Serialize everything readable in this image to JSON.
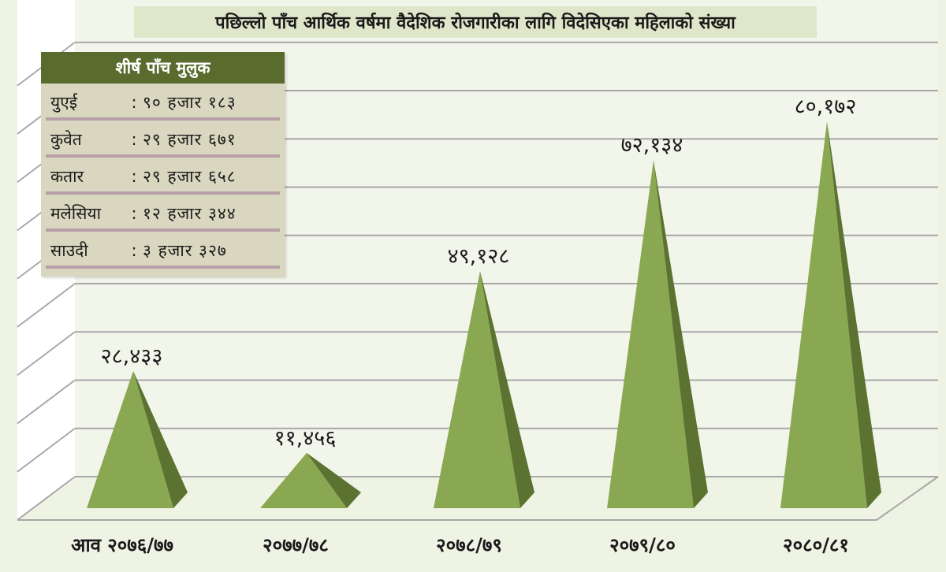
{
  "title": "पछिल्लो पाँच आर्थिक वर्षमा वैदेशिक रोजगारीका लागि विदेसिएका महिलाको संख्या",
  "top_countries": {
    "header": "शीर्ष पाँच मुलुक",
    "rows": [
      {
        "country": "युएई",
        "sep": ":",
        "value": "९० हजार १८३"
      },
      {
        "country": "कुवेत",
        "sep": ":",
        "value": "२९ हजार ६७१"
      },
      {
        "country": "कतार",
        "sep": ":",
        "value": "२९ हजार ६५८"
      },
      {
        "country": "मलेसिया",
        "sep": ":",
        "value": "१२ हजार ३४४"
      },
      {
        "country": "साउदी",
        "sep": ":",
        "value": "३ हजार ३२७"
      }
    ]
  },
  "chart_data": {
    "type": "bar",
    "mark": "3d-pyramid",
    "categories": [
      "आव २०७६/७७",
      "२०७७/७८",
      "२०७८/७९",
      "२०७९/८०",
      "२०८०/८१"
    ],
    "values": [
      28433,
      11456,
      49128,
      72134,
      80172
    ],
    "data_labels": [
      "२८,४३३",
      "११,४५६",
      "४९,१२८",
      "७२,१३४",
      "८०,१७२"
    ],
    "xlabel": "",
    "ylabel": "",
    "ylim": [
      0,
      90000
    ],
    "grid": true,
    "legend": "none",
    "colors": {
      "pyramid_light": "#8aa852",
      "pyramid_dark": "#5b7230",
      "grid": "#a8a8a8",
      "back_wall": "#f2f5ea",
      "side_wall": "#ffffff"
    }
  }
}
